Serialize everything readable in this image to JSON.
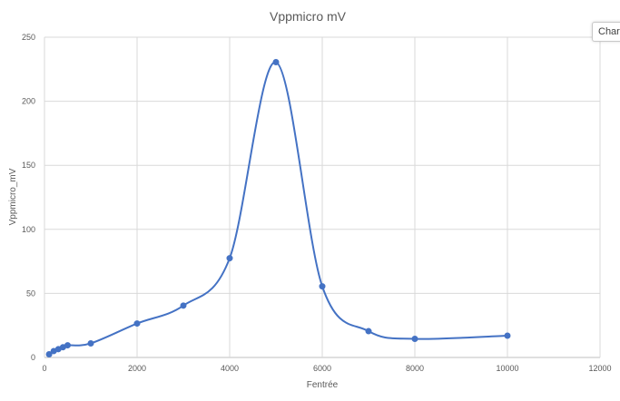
{
  "chart_tab": {
    "label": "Char"
  },
  "chart_data": {
    "type": "line",
    "title": "Vppmicro mV",
    "xlabel": "Fentrée",
    "ylabel": "Vppmicro_mV",
    "xlim": [
      0,
      12000
    ],
    "ylim": [
      0,
      250
    ],
    "x_ticks": [
      0,
      2000,
      4000,
      6000,
      8000,
      10000,
      12000
    ],
    "y_ticks": [
      0,
      50,
      100,
      150,
      200,
      250
    ],
    "grid": true,
    "smooth": true,
    "series_color": "#4472c4",
    "series": [
      {
        "x": [
          100,
          200,
          300,
          400,
          500,
          1000,
          2000,
          3000,
          4000,
          5000,
          6000,
          7000,
          8000,
          10000
        ],
        "y": [
          2.5,
          5,
          6.5,
          8,
          9.5,
          11,
          26.5,
          40.5,
          77.5,
          230.5,
          55.5,
          20.5,
          14.5,
          17
        ]
      }
    ]
  }
}
